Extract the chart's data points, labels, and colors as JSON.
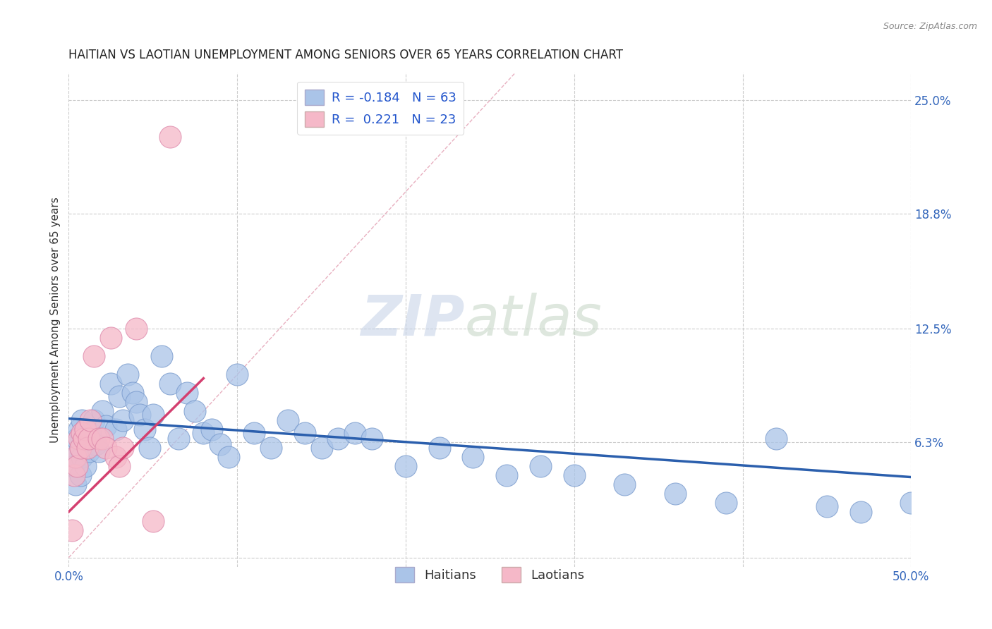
{
  "title": "HAITIAN VS LAOTIAN UNEMPLOYMENT AMONG SENIORS OVER 65 YEARS CORRELATION CHART",
  "source": "Source: ZipAtlas.com",
  "ylabel": "Unemployment Among Seniors over 65 years",
  "x_min": 0.0,
  "x_max": 0.5,
  "y_min": -0.005,
  "y_max": 0.265,
  "right_ytick_vals": [
    0.0,
    0.063,
    0.125,
    0.188,
    0.25
  ],
  "right_ytick_labels": [
    "",
    "6.3%",
    "12.5%",
    "18.8%",
    "25.0%"
  ],
  "haitians_R": -0.184,
  "haitians_N": 63,
  "laotians_R": 0.221,
  "laotians_N": 23,
  "haitian_color": "#aac4e8",
  "laotian_color": "#f5b8c8",
  "haitian_line_color": "#2b5fad",
  "laotian_line_color": "#d44070",
  "diag_color": "#e8b0c0",
  "grid_color": "#cccccc",
  "watermark_zip": "ZIP",
  "watermark_atlas": "atlas",
  "haitians_x": [
    0.002,
    0.003,
    0.004,
    0.005,
    0.005,
    0.006,
    0.007,
    0.007,
    0.008,
    0.008,
    0.009,
    0.01,
    0.01,
    0.011,
    0.012,
    0.013,
    0.015,
    0.016,
    0.018,
    0.02,
    0.022,
    0.025,
    0.028,
    0.03,
    0.032,
    0.035,
    0.038,
    0.04,
    0.042,
    0.045,
    0.048,
    0.05,
    0.055,
    0.06,
    0.065,
    0.07,
    0.075,
    0.08,
    0.085,
    0.09,
    0.095,
    0.1,
    0.11,
    0.12,
    0.13,
    0.14,
    0.15,
    0.16,
    0.17,
    0.18,
    0.2,
    0.22,
    0.24,
    0.26,
    0.28,
    0.3,
    0.33,
    0.36,
    0.39,
    0.42,
    0.45,
    0.47,
    0.5
  ],
  "haitians_y": [
    0.06,
    0.05,
    0.04,
    0.055,
    0.065,
    0.07,
    0.045,
    0.06,
    0.055,
    0.075,
    0.065,
    0.05,
    0.07,
    0.06,
    0.058,
    0.068,
    0.075,
    0.062,
    0.058,
    0.08,
    0.072,
    0.095,
    0.07,
    0.088,
    0.075,
    0.1,
    0.09,
    0.085,
    0.078,
    0.07,
    0.06,
    0.078,
    0.11,
    0.095,
    0.065,
    0.09,
    0.08,
    0.068,
    0.07,
    0.062,
    0.055,
    0.1,
    0.068,
    0.06,
    0.075,
    0.068,
    0.06,
    0.065,
    0.068,
    0.065,
    0.05,
    0.06,
    0.055,
    0.045,
    0.05,
    0.045,
    0.04,
    0.035,
    0.03,
    0.065,
    0.028,
    0.025,
    0.03
  ],
  "laotians_x": [
    0.002,
    0.003,
    0.004,
    0.005,
    0.006,
    0.007,
    0.008,
    0.009,
    0.01,
    0.011,
    0.012,
    0.013,
    0.015,
    0.018,
    0.02,
    0.022,
    0.025,
    0.028,
    0.03,
    0.032,
    0.04,
    0.05,
    0.06
  ],
  "laotians_y": [
    0.015,
    0.045,
    0.055,
    0.05,
    0.065,
    0.06,
    0.068,
    0.065,
    0.07,
    0.06,
    0.065,
    0.075,
    0.11,
    0.065,
    0.065,
    0.06,
    0.12,
    0.055,
    0.05,
    0.06,
    0.125,
    0.02,
    0.23
  ],
  "haitian_trendline_x": [
    0.0,
    0.5
  ],
  "haitian_trendline_y": [
    0.076,
    0.044
  ],
  "laotian_trendline_x": [
    0.0,
    0.08
  ],
  "laotian_trendline_y": [
    0.025,
    0.098
  ]
}
